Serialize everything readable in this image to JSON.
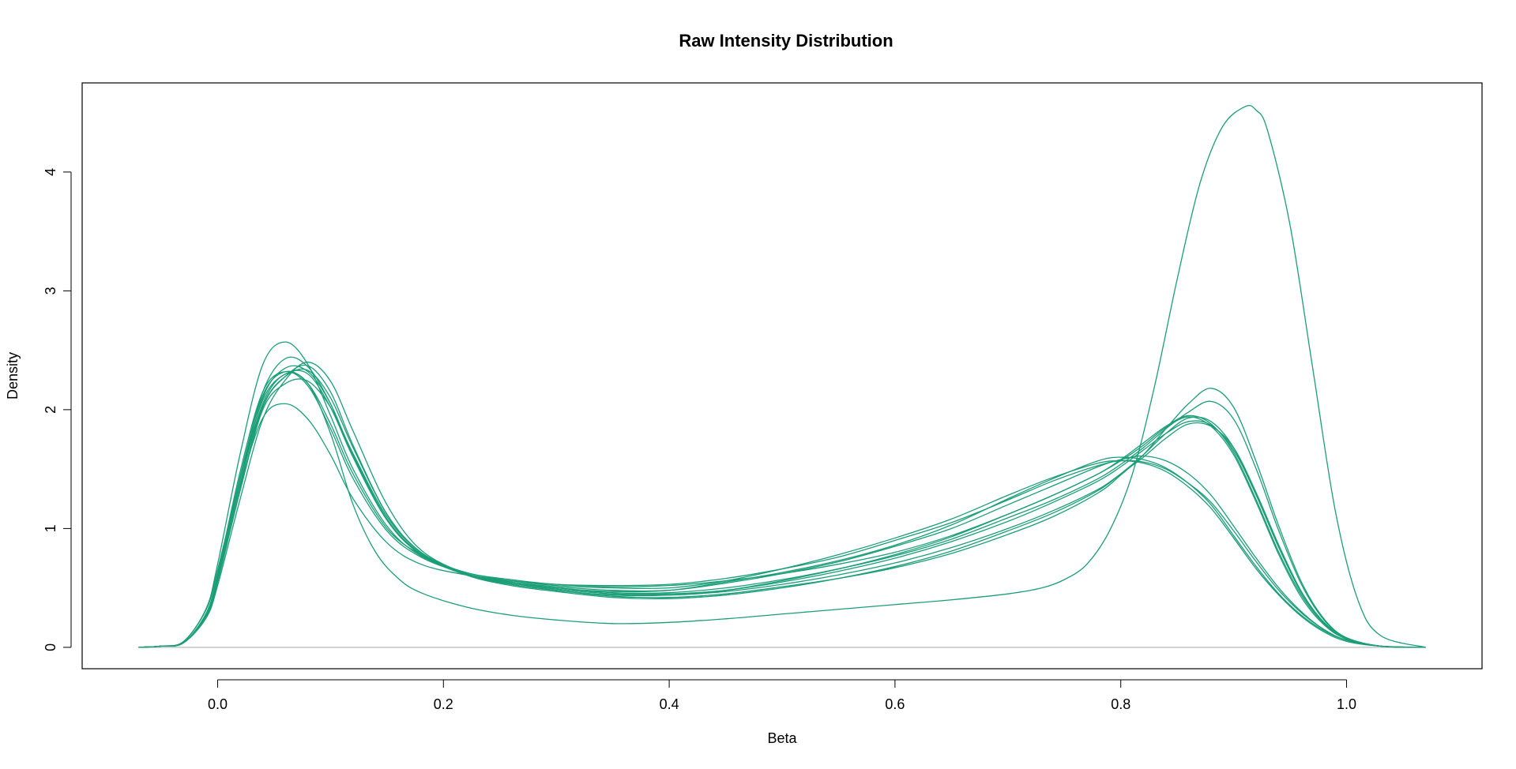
{
  "chart_data": {
    "type": "line",
    "title": "Raw Intensity Distribution",
    "xlabel": "Beta",
    "ylabel": "Density",
    "xlim": [
      -0.12,
      1.12
    ],
    "ylim": [
      -0.18,
      4.75
    ],
    "x_ticks": [
      0.0,
      0.2,
      0.4,
      0.6,
      0.8,
      1.0
    ],
    "x_tick_labels": [
      "0.0",
      "0.2",
      "0.4",
      "0.6",
      "0.8",
      "1.0"
    ],
    "y_ticks": [
      0,
      1,
      2,
      3,
      4
    ],
    "y_tick_labels": [
      "0",
      "1",
      "2",
      "3",
      "4"
    ],
    "baseline": 0,
    "grid": false,
    "legend": "none",
    "line_color": "#1B9E77",
    "baseline_color": "#BEBEBE",
    "series": [
      {
        "x": [
          -0.07,
          -0.05,
          -0.03,
          -0.01,
          0.0,
          0.02,
          0.04,
          0.06,
          0.08,
          0.1,
          0.12,
          0.15,
          0.18,
          0.22,
          0.26,
          0.3,
          0.35,
          0.4,
          0.45,
          0.5,
          0.55,
          0.6,
          0.65,
          0.7,
          0.74,
          0.78,
          0.8,
          0.82,
          0.84,
          0.86,
          0.88,
          0.9,
          0.92,
          0.94,
          0.96,
          0.98,
          1.0,
          1.03,
          1.07
        ],
        "y": [
          0,
          0.01,
          0.05,
          0.32,
          0.65,
          1.43,
          2.15,
          2.43,
          2.36,
          2.05,
          1.62,
          1.08,
          0.78,
          0.62,
          0.55,
          0.5,
          0.47,
          0.48,
          0.55,
          0.63,
          0.73,
          0.86,
          1.03,
          1.25,
          1.42,
          1.57,
          1.6,
          1.58,
          1.51,
          1.38,
          1.2,
          0.94,
          0.68,
          0.45,
          0.27,
          0.14,
          0.06,
          0.01,
          0
        ]
      },
      {
        "x": [
          -0.07,
          -0.05,
          -0.03,
          -0.01,
          0.0,
          0.02,
          0.04,
          0.06,
          0.08,
          0.1,
          0.12,
          0.15,
          0.18,
          0.22,
          0.26,
          0.3,
          0.35,
          0.4,
          0.45,
          0.5,
          0.55,
          0.6,
          0.65,
          0.7,
          0.74,
          0.78,
          0.8,
          0.82,
          0.84,
          0.86,
          0.88,
          0.9,
          0.92,
          0.94,
          0.96,
          0.98,
          1.0,
          1.03,
          1.07
        ],
        "y": [
          0,
          0.01,
          0.05,
          0.33,
          0.7,
          1.63,
          2.38,
          2.57,
          2.38,
          1.95,
          1.5,
          1.02,
          0.77,
          0.63,
          0.56,
          0.52,
          0.5,
          0.5,
          0.56,
          0.66,
          0.78,
          0.92,
          1.08,
          1.28,
          1.43,
          1.55,
          1.57,
          1.55,
          1.48,
          1.35,
          1.17,
          0.92,
          0.66,
          0.44,
          0.26,
          0.13,
          0.05,
          0.01,
          0
        ]
      },
      {
        "x": [
          -0.07,
          -0.05,
          -0.03,
          -0.01,
          0.0,
          0.02,
          0.04,
          0.06,
          0.08,
          0.1,
          0.12,
          0.15,
          0.18,
          0.22,
          0.26,
          0.3,
          0.35,
          0.4,
          0.45,
          0.5,
          0.55,
          0.6,
          0.65,
          0.7,
          0.74,
          0.78,
          0.8,
          0.82,
          0.84,
          0.86,
          0.88,
          0.9,
          0.92,
          0.94,
          0.96,
          0.98,
          1.0,
          1.03,
          1.07
        ],
        "y": [
          0,
          0.01,
          0.04,
          0.27,
          0.58,
          1.36,
          1.93,
          2.05,
          1.92,
          1.62,
          1.25,
          0.88,
          0.7,
          0.61,
          0.56,
          0.53,
          0.52,
          0.53,
          0.58,
          0.66,
          0.76,
          0.9,
          1.05,
          1.24,
          1.4,
          1.53,
          1.57,
          1.56,
          1.5,
          1.38,
          1.22,
          0.98,
          0.72,
          0.48,
          0.29,
          0.15,
          0.06,
          0.01,
          0
        ]
      },
      {
        "x": [
          -0.07,
          -0.05,
          -0.03,
          -0.01,
          0.0,
          0.02,
          0.04,
          0.06,
          0.08,
          0.1,
          0.12,
          0.15,
          0.18,
          0.22,
          0.26,
          0.3,
          0.35,
          0.4,
          0.45,
          0.5,
          0.55,
          0.6,
          0.65,
          0.7,
          0.74,
          0.78,
          0.8,
          0.82,
          0.84,
          0.86,
          0.88,
          0.9,
          0.92,
          0.94,
          0.96,
          0.98,
          1.0,
          1.03,
          1.07
        ],
        "y": [
          0,
          0.01,
          0.04,
          0.29,
          0.62,
          1.48,
          2.15,
          2.32,
          2.2,
          1.84,
          1.42,
          0.98,
          0.76,
          0.62,
          0.55,
          0.51,
          0.48,
          0.48,
          0.54,
          0.62,
          0.72,
          0.85,
          1.0,
          1.2,
          1.36,
          1.52,
          1.58,
          1.61,
          1.57,
          1.46,
          1.28,
          1.02,
          0.75,
          0.5,
          0.3,
          0.15,
          0.06,
          0.01,
          0
        ]
      },
      {
        "x": [
          -0.07,
          -0.05,
          -0.03,
          -0.01,
          0.0,
          0.02,
          0.04,
          0.06,
          0.08,
          0.1,
          0.12,
          0.15,
          0.18,
          0.22,
          0.26,
          0.3,
          0.35,
          0.4,
          0.45,
          0.5,
          0.55,
          0.6,
          0.65,
          0.7,
          0.74,
          0.78,
          0.8,
          0.82,
          0.84,
          0.86,
          0.88,
          0.9,
          0.92,
          0.94,
          0.96,
          0.98,
          1.0,
          1.03,
          1.07
        ],
        "y": [
          0,
          0.01,
          0.04,
          0.26,
          0.56,
          1.33,
          2.02,
          2.28,
          2.37,
          2.15,
          1.7,
          1.12,
          0.8,
          0.62,
          0.54,
          0.49,
          0.45,
          0.45,
          0.48,
          0.55,
          0.64,
          0.75,
          0.89,
          1.06,
          1.22,
          1.4,
          1.52,
          1.66,
          1.8,
          1.9,
          1.87,
          1.66,
          1.28,
          0.84,
          0.46,
          0.21,
          0.08,
          0.01,
          0
        ]
      },
      {
        "x": [
          -0.07,
          -0.05,
          -0.03,
          -0.01,
          0.0,
          0.02,
          0.04,
          0.06,
          0.08,
          0.1,
          0.12,
          0.15,
          0.18,
          0.22,
          0.26,
          0.3,
          0.35,
          0.4,
          0.45,
          0.5,
          0.55,
          0.6,
          0.65,
          0.7,
          0.74,
          0.78,
          0.8,
          0.82,
          0.84,
          0.86,
          0.88,
          0.9,
          0.92,
          0.94,
          0.96,
          0.98,
          1.0,
          1.03,
          1.07
        ],
        "y": [
          0,
          0.01,
          0.04,
          0.27,
          0.58,
          1.38,
          2.1,
          2.35,
          2.32,
          2.05,
          1.6,
          1.07,
          0.78,
          0.61,
          0.53,
          0.48,
          0.44,
          0.44,
          0.48,
          0.56,
          0.66,
          0.78,
          0.93,
          1.12,
          1.28,
          1.46,
          1.58,
          1.72,
          1.86,
          1.95,
          1.88,
          1.64,
          1.24,
          0.8,
          0.44,
          0.2,
          0.07,
          0.01,
          0
        ]
      },
      {
        "x": [
          -0.07,
          -0.05,
          -0.03,
          -0.01,
          0.0,
          0.02,
          0.04,
          0.06,
          0.08,
          0.1,
          0.12,
          0.15,
          0.18,
          0.22,
          0.26,
          0.3,
          0.35,
          0.4,
          0.45,
          0.5,
          0.55,
          0.6,
          0.65,
          0.7,
          0.74,
          0.78,
          0.8,
          0.82,
          0.84,
          0.86,
          0.88,
          0.9,
          0.92,
          0.94,
          0.96,
          0.98,
          1.0,
          1.03,
          1.07
        ],
        "y": [
          0,
          0.01,
          0.04,
          0.25,
          0.52,
          1.25,
          1.92,
          2.25,
          2.4,
          2.24,
          1.82,
          1.2,
          0.82,
          0.62,
          0.53,
          0.48,
          0.43,
          0.42,
          0.45,
          0.51,
          0.58,
          0.67,
          0.79,
          0.95,
          1.1,
          1.3,
          1.45,
          1.62,
          1.84,
          2.05,
          2.18,
          2.02,
          1.56,
          1.02,
          0.55,
          0.24,
          0.08,
          0.01,
          0
        ]
      },
      {
        "x": [
          -0.07,
          -0.05,
          -0.03,
          -0.01,
          0.0,
          0.02,
          0.04,
          0.06,
          0.08,
          0.1,
          0.12,
          0.15,
          0.18,
          0.22,
          0.26,
          0.3,
          0.35,
          0.4,
          0.45,
          0.5,
          0.55,
          0.6,
          0.65,
          0.7,
          0.74,
          0.78,
          0.8,
          0.82,
          0.84,
          0.86,
          0.88,
          0.9,
          0.92,
          0.94,
          0.96,
          0.98,
          1.0,
          1.03,
          1.07
        ],
        "y": [
          0,
          0.01,
          0.04,
          0.26,
          0.55,
          1.32,
          2.0,
          2.22,
          2.24,
          2.02,
          1.63,
          1.1,
          0.8,
          0.62,
          0.54,
          0.5,
          0.46,
          0.46,
          0.5,
          0.57,
          0.66,
          0.77,
          0.91,
          1.09,
          1.24,
          1.42,
          1.54,
          1.68,
          1.84,
          1.98,
          2.07,
          1.92,
          1.5,
          0.98,
          0.53,
          0.23,
          0.08,
          0.01,
          0
        ]
      },
      {
        "x": [
          -0.07,
          -0.05,
          -0.03,
          -0.01,
          0.0,
          0.02,
          0.04,
          0.06,
          0.08,
          0.1,
          0.12,
          0.15,
          0.18,
          0.22,
          0.26,
          0.3,
          0.35,
          0.4,
          0.45,
          0.5,
          0.55,
          0.6,
          0.65,
          0.7,
          0.74,
          0.78,
          0.8,
          0.82,
          0.84,
          0.86,
          0.88,
          0.9,
          0.92,
          0.94,
          0.96,
          0.98,
          1.0,
          1.03,
          1.07
        ],
        "y": [
          0,
          0.01,
          0.04,
          0.28,
          0.6,
          1.42,
          2.08,
          2.3,
          2.3,
          2.02,
          1.6,
          1.08,
          0.79,
          0.62,
          0.54,
          0.49,
          0.45,
          0.44,
          0.47,
          0.53,
          0.61,
          0.71,
          0.84,
          1.0,
          1.15,
          1.33,
          1.46,
          1.6,
          1.76,
          1.88,
          1.86,
          1.68,
          1.3,
          0.86,
          0.47,
          0.21,
          0.08,
          0.01,
          0
        ]
      },
      {
        "x": [
          -0.07,
          -0.05,
          -0.03,
          -0.01,
          0.0,
          0.02,
          0.04,
          0.06,
          0.08,
          0.1,
          0.12,
          0.15,
          0.18,
          0.22,
          0.26,
          0.3,
          0.35,
          0.4,
          0.45,
          0.5,
          0.55,
          0.6,
          0.65,
          0.7,
          0.74,
          0.78,
          0.8,
          0.82,
          0.84,
          0.86,
          0.88,
          0.9,
          0.92,
          0.94,
          0.96,
          0.98,
          1.0,
          1.03,
          1.07
        ],
        "y": [
          0,
          0.01,
          0.04,
          0.27,
          0.58,
          1.38,
          2.03,
          2.28,
          2.33,
          2.1,
          1.68,
          1.12,
          0.8,
          0.61,
          0.52,
          0.47,
          0.42,
          0.41,
          0.44,
          0.5,
          0.58,
          0.68,
          0.81,
          0.98,
          1.13,
          1.32,
          1.46,
          1.62,
          1.8,
          1.93,
          1.9,
          1.68,
          1.28,
          0.84,
          0.46,
          0.21,
          0.07,
          0.01,
          0
        ]
      },
      {
        "x": [
          -0.07,
          -0.05,
          -0.03,
          -0.01,
          0.0,
          0.02,
          0.04,
          0.06,
          0.08,
          0.1,
          0.12,
          0.15,
          0.18,
          0.22,
          0.26,
          0.3,
          0.35,
          0.4,
          0.45,
          0.5,
          0.55,
          0.6,
          0.65,
          0.7,
          0.74,
          0.78,
          0.8,
          0.82,
          0.84,
          0.86,
          0.88,
          0.9,
          0.92,
          0.94,
          0.96,
          0.98,
          1.0,
          1.03,
          1.07
        ],
        "y": [
          0,
          0.01,
          0.04,
          0.28,
          0.6,
          1.44,
          2.12,
          2.32,
          2.22,
          1.88,
          1.46,
          1.0,
          0.78,
          0.63,
          0.57,
          0.53,
          0.51,
          0.52,
          0.56,
          0.62,
          0.7,
          0.8,
          0.94,
          1.12,
          1.28,
          1.46,
          1.57,
          1.7,
          1.85,
          1.94,
          1.86,
          1.62,
          1.22,
          0.78,
          0.42,
          0.19,
          0.07,
          0.01,
          0
        ]
      },
      {
        "x": [
          -0.07,
          -0.05,
          -0.03,
          -0.01,
          0.0,
          0.02,
          0.04,
          0.06,
          0.08,
          0.1,
          0.12,
          0.14,
          0.16,
          0.18,
          0.22,
          0.26,
          0.3,
          0.35,
          0.4,
          0.45,
          0.5,
          0.55,
          0.6,
          0.65,
          0.7,
          0.73,
          0.75,
          0.77,
          0.79,
          0.81,
          0.83,
          0.85,
          0.87,
          0.89,
          0.91,
          0.92,
          0.93,
          0.95,
          0.97,
          0.99,
          1.01,
          1.03,
          1.07
        ],
        "y": [
          0,
          0.01,
          0.04,
          0.27,
          0.58,
          1.38,
          2.05,
          2.3,
          2.22,
          1.8,
          1.2,
          0.8,
          0.58,
          0.46,
          0.34,
          0.27,
          0.23,
          0.2,
          0.21,
          0.24,
          0.28,
          0.32,
          0.36,
          0.4,
          0.45,
          0.5,
          0.57,
          0.7,
          0.98,
          1.45,
          2.2,
          3.1,
          3.9,
          4.38,
          4.55,
          4.52,
          4.35,
          3.55,
          2.35,
          1.15,
          0.4,
          0.1,
          0
        ]
      }
    ]
  },
  "figure": {
    "title": "Raw Intensity Distribution"
  }
}
